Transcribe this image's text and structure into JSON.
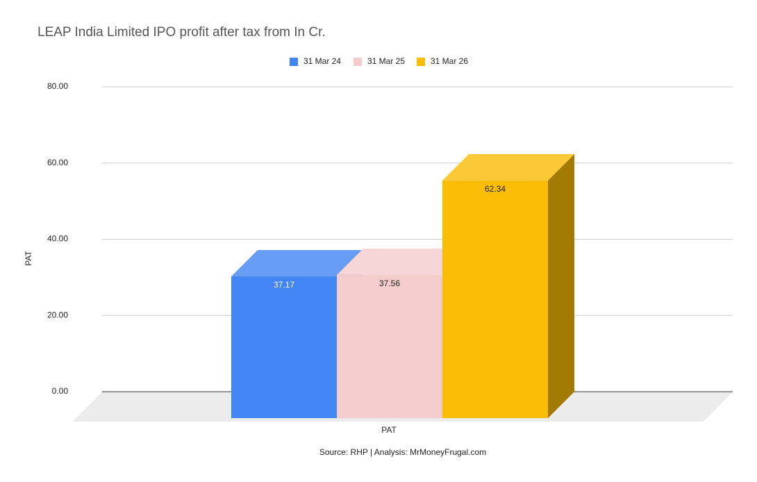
{
  "chart_data": {
    "type": "bar",
    "title": "LEAP India Limited IPO profit after tax from In Cr.",
    "categories": [
      "PAT"
    ],
    "series": [
      {
        "name": "31 Mar 24",
        "color": "#4285f4",
        "values": [
          37.17
        ]
      },
      {
        "name": "31 Mar 25",
        "color": "#f4cccc",
        "values": [
          37.56
        ]
      },
      {
        "name": "31 Mar 26",
        "color": "#fbbc04",
        "values": [
          62.34
        ]
      }
    ],
    "x_label": "PAT",
    "y_label": "PAT",
    "source": "Source: RHP | Analysis: MrMoneyFrugal.com",
    "ylim": [
      0,
      80
    ],
    "yticks": [
      {
        "value": 0,
        "label": "0.00"
      },
      {
        "value": 20,
        "label": "20.00"
      },
      {
        "value": 40,
        "label": "40.00"
      },
      {
        "value": 60,
        "label": "60.00"
      },
      {
        "value": 80,
        "label": "80.00"
      }
    ],
    "grid": true,
    "legend": "top"
  }
}
